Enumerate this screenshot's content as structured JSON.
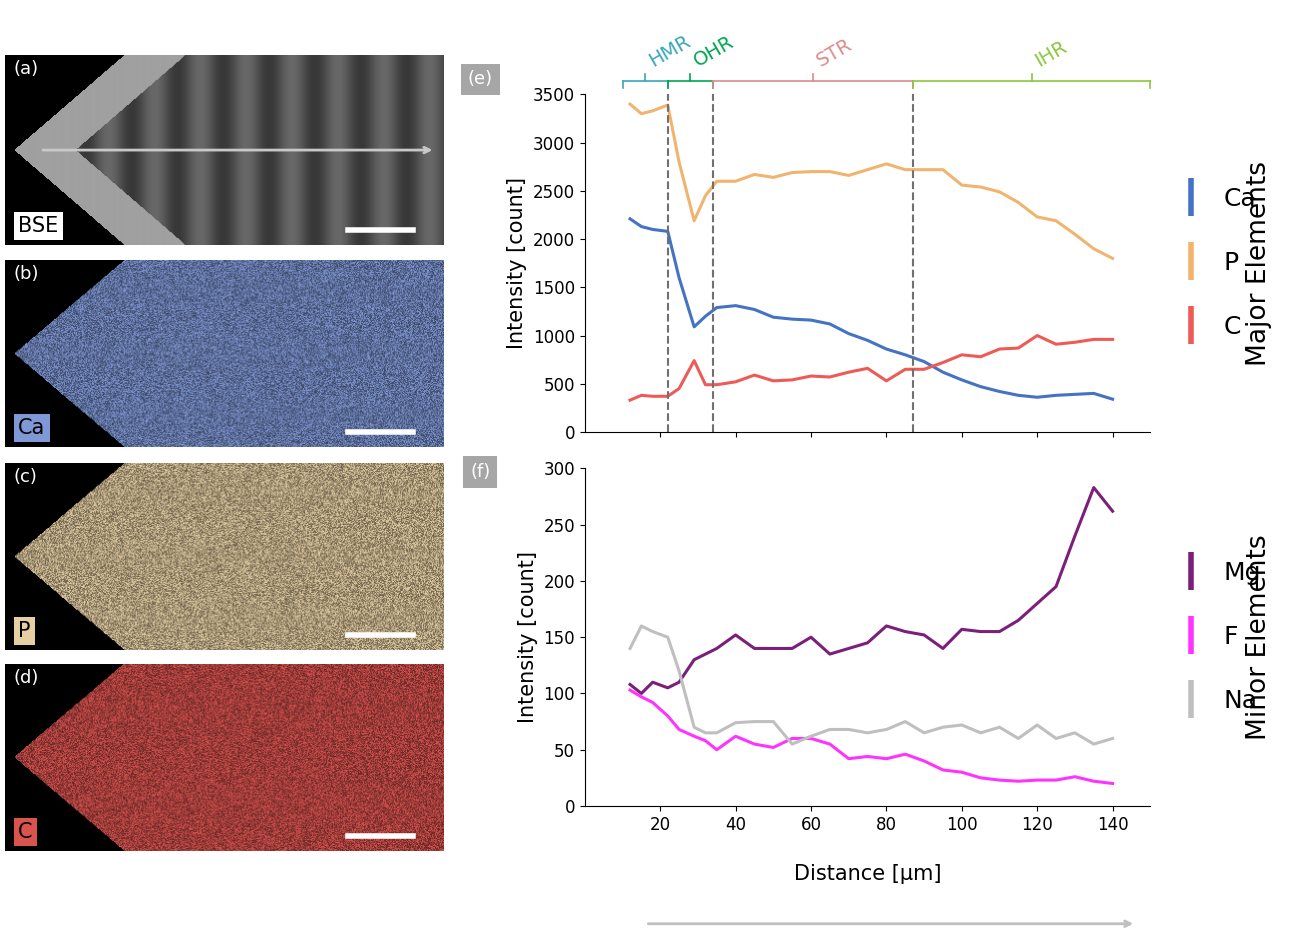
{
  "panels": [
    {
      "tag": "(a)",
      "label": "BSE",
      "color": "#a0a0a0"
    },
    {
      "tag": "(b)",
      "label": "Ca",
      "color": "#7f98d6"
    },
    {
      "tag": "(c)",
      "label": "P",
      "color": "#e6cfa3"
    },
    {
      "tag": "(d)",
      "label": "C",
      "color": "#d9534f"
    }
  ],
  "regions": [
    {
      "name": "HMR",
      "start": 10,
      "end": 22,
      "color": "#3aa6b9"
    },
    {
      "name": "OHR",
      "start": 22,
      "end": 34,
      "color": "#00a651"
    },
    {
      "name": "STR",
      "start": 34,
      "end": 87,
      "color": "#d98c8c"
    },
    {
      "name": "IHR",
      "start": 87,
      "end": 150,
      "color": "#8cc63f"
    }
  ],
  "chart_data": [
    {
      "type": "line",
      "panel": "(e)",
      "side_label": "Major Elements",
      "y_label": "Intensity [count]",
      "x": [
        12,
        15,
        18,
        22,
        25,
        29,
        32,
        35,
        40,
        45,
        50,
        55,
        60,
        65,
        70,
        75,
        80,
        85,
        90,
        95,
        100,
        105,
        110,
        115,
        120,
        125,
        130,
        135,
        140
      ],
      "series": [
        {
          "name": "Ca",
          "color": "#4472c4",
          "values": [
            2210,
            2130,
            2100,
            2080,
            1600,
            1090,
            1200,
            1290,
            1310,
            1270,
            1190,
            1170,
            1160,
            1120,
            1020,
            950,
            860,
            800,
            730,
            620,
            540,
            470,
            420,
            380,
            360,
            380,
            390,
            400,
            340
          ]
        },
        {
          "name": "P",
          "color": "#f0b46e",
          "values": [
            3400,
            3300,
            3330,
            3390,
            2800,
            2190,
            2450,
            2600,
            2600,
            2670,
            2640,
            2690,
            2700,
            2700,
            2660,
            2720,
            2780,
            2720,
            2720,
            2720,
            2560,
            2540,
            2490,
            2380,
            2230,
            2190,
            2050,
            1900,
            1800
          ]
        },
        {
          "name": "C",
          "color": "#ee5a55",
          "values": [
            330,
            380,
            370,
            370,
            450,
            740,
            490,
            490,
            520,
            590,
            530,
            540,
            580,
            570,
            620,
            660,
            530,
            650,
            650,
            720,
            800,
            780,
            860,
            870,
            1000,
            910,
            930,
            960,
            960
          ]
        }
      ],
      "xlim": [
        0,
        150
      ],
      "xticks": [
        20,
        40,
        60,
        80,
        100,
        120,
        140
      ],
      "ylim": [
        0,
        3500
      ],
      "yticks": [
        0,
        500,
        1000,
        1500,
        2000,
        2500,
        3000,
        3500
      ],
      "tick_labels": "y",
      "legend": "center left",
      "grid": false
    },
    {
      "type": "line",
      "panel": "(f)",
      "side_label": "Minor Elements",
      "y_label": "Intensity [count]",
      "x_label": "Distance [μm]",
      "x": [
        12,
        15,
        18,
        22,
        25,
        29,
        32,
        35,
        40,
        45,
        50,
        55,
        60,
        65,
        70,
        75,
        80,
        85,
        90,
        95,
        100,
        105,
        110,
        115,
        120,
        125,
        130,
        135,
        140
      ],
      "series": [
        {
          "name": "Mg",
          "color": "#7b1f7b",
          "values": [
            108,
            100,
            110,
            105,
            110,
            130,
            135,
            140,
            152,
            140,
            140,
            140,
            150,
            135,
            140,
            145,
            160,
            155,
            152,
            140,
            157,
            155,
            155,
            165,
            180,
            195,
            240,
            283,
            262
          ]
        },
        {
          "name": "F",
          "color": "#ff33ff",
          "values": [
            103,
            97,
            92,
            80,
            68,
            62,
            58,
            50,
            62,
            55,
            52,
            60,
            60,
            55,
            42,
            44,
            42,
            46,
            40,
            32,
            30,
            25,
            23,
            22,
            23,
            23,
            26,
            22,
            20
          ]
        },
        {
          "name": "Na",
          "color": "#bfbfbf",
          "values": [
            140,
            160,
            155,
            150,
            120,
            70,
            65,
            65,
            74,
            75,
            75,
            55,
            62,
            68,
            68,
            65,
            68,
            75,
            65,
            70,
            72,
            65,
            70,
            60,
            72,
            60,
            65,
            55,
            60
          ]
        }
      ],
      "xlim": [
        0,
        150
      ],
      "xticks": [
        20,
        40,
        60,
        80,
        100,
        120,
        140
      ],
      "ylim": [
        0,
        300
      ],
      "yticks": [
        0,
        50,
        100,
        150,
        200,
        250,
        300
      ],
      "legend": "center left",
      "grid": false
    }
  ]
}
